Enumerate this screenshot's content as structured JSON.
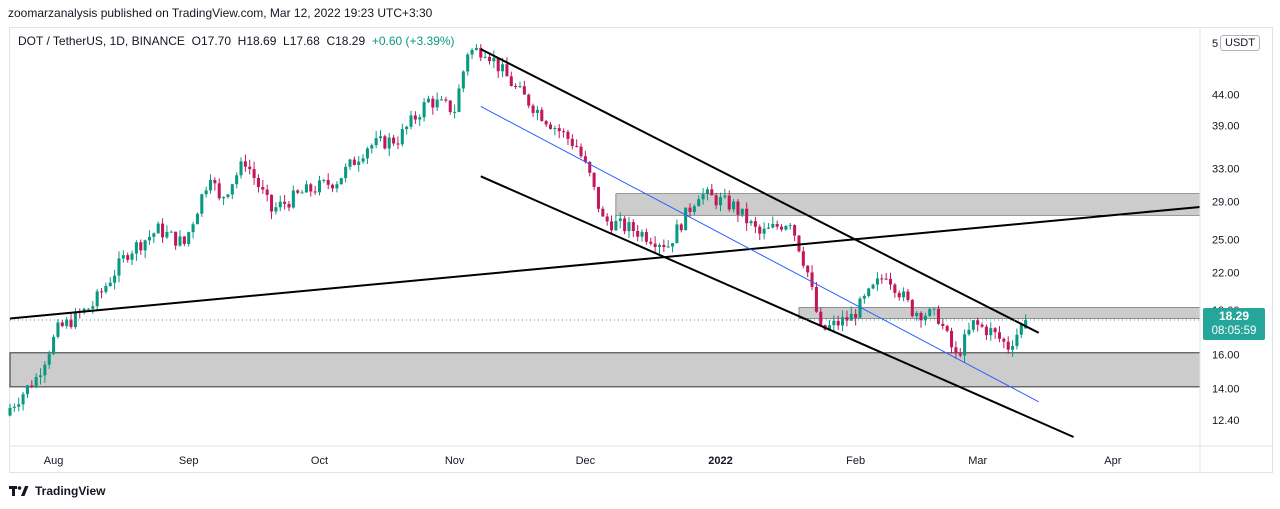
{
  "header": {
    "publisher_line": "zoomarzanalysis published on TradingView.com, Mar 12, 2022 19:23 UTC+3:30"
  },
  "legend": {
    "symbol": "DOT / TetherUS, 1D, BINANCE",
    "open_label": "O",
    "open": "17.70",
    "high_label": "H",
    "high": "18.69",
    "low_label": "L",
    "low": "17.68",
    "close_label": "C",
    "close": "18.29",
    "change": "+0.60 (+3.39%)"
  },
  "currency_button": "USDT",
  "current_price": {
    "price": "18.29",
    "countdown": "08:05:59"
  },
  "footer": {
    "brand": "TradingView",
    "logo_icon": "tradingview-logo-icon"
  },
  "colors": {
    "up": "#089981",
    "down": "#c2185b",
    "zone": "#cccccc",
    "trend": "#000000",
    "mid": "#2962ff",
    "tag": "#26a69a"
  },
  "chart_data": {
    "type": "candlestick",
    "y_scale": "log",
    "ylim": [
      11.2,
      57
    ],
    "y_ticks": [
      {
        "value": 44,
        "label": "44.00"
      },
      {
        "value": 39,
        "label": "39.00"
      },
      {
        "value": 33,
        "label": "33.00"
      },
      {
        "value": 29,
        "label": "29.00"
      },
      {
        "value": 25,
        "label": "25.00"
      },
      {
        "value": 22,
        "label": "22.00"
      },
      {
        "value": 19,
        "label": "19.00"
      },
      {
        "value": 16,
        "label": "16.00"
      },
      {
        "value": 14,
        "label": "14.00"
      },
      {
        "value": 12.4,
        "label": "12.40"
      }
    ],
    "y_top_label": "5",
    "x_ticks": [
      {
        "date": "2021-08-01",
        "label": "Aug",
        "bold": false
      },
      {
        "date": "2021-09-01",
        "label": "Sep",
        "bold": false
      },
      {
        "date": "2021-10-01",
        "label": "Oct",
        "bold": false
      },
      {
        "date": "2021-11-01",
        "label": "Nov",
        "bold": false
      },
      {
        "date": "2021-12-01",
        "label": "Dec",
        "bold": false
      },
      {
        "date": "2022-01-01",
        "label": "2022",
        "bold": true
      },
      {
        "date": "2022-02-01",
        "label": "Feb",
        "bold": false
      },
      {
        "date": "2022-03-01",
        "label": "Mar",
        "bold": false
      },
      {
        "date": "2022-04-01",
        "label": "Apr",
        "bold": false
      }
    ],
    "x_range": [
      "2021-07-22",
      "2022-04-21"
    ],
    "anchor_closes": [
      [
        "2021-07-22",
        13.0
      ],
      [
        "2021-07-28",
        14.6
      ],
      [
        "2021-08-02",
        17.6
      ],
      [
        "2021-08-10",
        19.4
      ],
      [
        "2021-08-18",
        23.8
      ],
      [
        "2021-08-25",
        26.0
      ],
      [
        "2021-08-31",
        24.6
      ],
      [
        "2021-09-06",
        32.5
      ],
      [
        "2021-09-08",
        29.0
      ],
      [
        "2021-09-14",
        34.0
      ],
      [
        "2021-09-20",
        28.0
      ],
      [
        "2021-09-27",
        30.0
      ],
      [
        "2021-10-05",
        31.5
      ],
      [
        "2021-10-12",
        36.0
      ],
      [
        "2021-10-19",
        37.0
      ],
      [
        "2021-10-26",
        43.0
      ],
      [
        "2021-11-01",
        41.5
      ],
      [
        "2021-11-04",
        52.0
      ],
      [
        "2021-11-08",
        52.5
      ],
      [
        "2021-11-15",
        45.0
      ],
      [
        "2021-11-22",
        40.0
      ],
      [
        "2021-11-29",
        36.0
      ],
      [
        "2021-12-02",
        32.0
      ],
      [
        "2021-12-05",
        27.0
      ],
      [
        "2021-12-12",
        26.0
      ],
      [
        "2021-12-20",
        24.5
      ],
      [
        "2021-12-27",
        30.0
      ],
      [
        "2022-01-04",
        28.5
      ],
      [
        "2022-01-10",
        25.5
      ],
      [
        "2022-01-17",
        27.0
      ],
      [
        "2022-01-21",
        22.0
      ],
      [
        "2022-01-24",
        17.5
      ],
      [
        "2022-01-31",
        18.5
      ],
      [
        "2022-02-08",
        22.0
      ],
      [
        "2022-02-14",
        19.0
      ],
      [
        "2022-02-20",
        18.5
      ],
      [
        "2022-02-24",
        15.8
      ],
      [
        "2022-02-28",
        18.0
      ],
      [
        "2022-03-04",
        17.5
      ],
      [
        "2022-03-08",
        16.5
      ],
      [
        "2022-03-12",
        18.29
      ]
    ],
    "zones": [
      {
        "from": "2021-12-08",
        "to": "2022-04-21",
        "low": 27.5,
        "high": 29.9
      },
      {
        "from": "2022-01-19",
        "to": "2022-04-21",
        "low": 18.4,
        "high": 19.2
      },
      {
        "from": "2021-07-22",
        "to": "2022-04-21",
        "low": 14.1,
        "high": 16.1
      }
    ],
    "trendlines": [
      {
        "from": [
          "2021-07-22",
          18.4
        ],
        "to": [
          "2022-04-21",
          28.4
        ],
        "color": "#000000",
        "width": 2
      },
      {
        "from": [
          "2021-11-07",
          52.5
        ],
        "to": [
          "2022-03-15",
          17.4
        ],
        "color": "#000000",
        "width": 2
      },
      {
        "from": [
          "2021-11-07",
          32.0
        ],
        "to": [
          "2022-03-23",
          11.6
        ],
        "color": "#000000",
        "width": 2
      },
      {
        "from": [
          "2021-11-07",
          42.0
        ],
        "to": [
          "2022-03-15",
          13.3
        ],
        "color": "#2962ff",
        "width": 1
      }
    ],
    "current_price": 18.29
  }
}
